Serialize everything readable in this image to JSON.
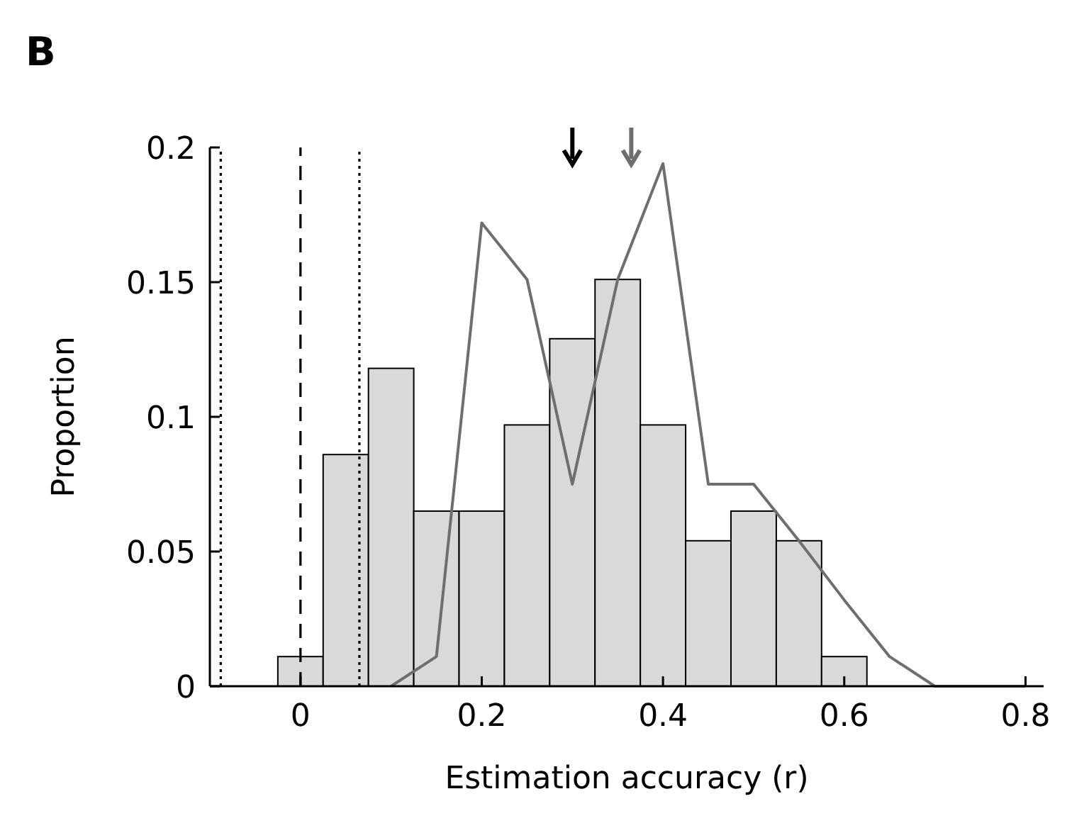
{
  "chart_data": {
    "type": "histogram",
    "title": "B",
    "xlabel": "Estimation accuracy (r)",
    "ylabel": "Proportion",
    "xlim": [
      -0.1,
      0.82
    ],
    "ylim": [
      0,
      0.2
    ],
    "xticks": [
      0,
      0.2,
      0.4,
      0.6,
      0.8
    ],
    "yticks": [
      0,
      0.05,
      0.1,
      0.15,
      0.2
    ],
    "grid": false,
    "series": [
      {
        "color": "#d9d9d9",
        "bins": [
          -0.025,
          0.025,
          0.075,
          0.125,
          0.175,
          0.225,
          0.275,
          0.325,
          0.375,
          0.425,
          0.475,
          0.525,
          0.575,
          0.625
        ],
        "values": [
          0.011,
          0.086,
          0.118,
          0.065,
          0.065,
          0.097,
          0.129,
          0.151,
          0.097,
          0.054,
          0.065,
          0.054,
          0.011
        ]
      },
      {
        "type": "line",
        "color": "#6e6e6e",
        "x": [
          0.1,
          0.15,
          0.2,
          0.25,
          0.3,
          0.35,
          0.4,
          0.45,
          0.5,
          0.55,
          0.6,
          0.65,
          0.7,
          0.8
        ],
        "values": [
          0,
          0.011,
          0.172,
          0.151,
          0.075,
          0.151,
          0.194,
          0.075,
          0.075,
          0.054,
          0.032,
          0.011,
          0,
          0
        ]
      }
    ],
    "ref_lines": [
      {
        "axis": "x",
        "value": -0.088,
        "line_style": "dotted",
        "color": "#000000"
      },
      {
        "axis": "x",
        "value": 0,
        "line_style": "dashed",
        "color": "#000000"
      },
      {
        "axis": "x",
        "value": 0.065,
        "line_style": "dotted",
        "color": "#000000"
      }
    ]
  }
}
